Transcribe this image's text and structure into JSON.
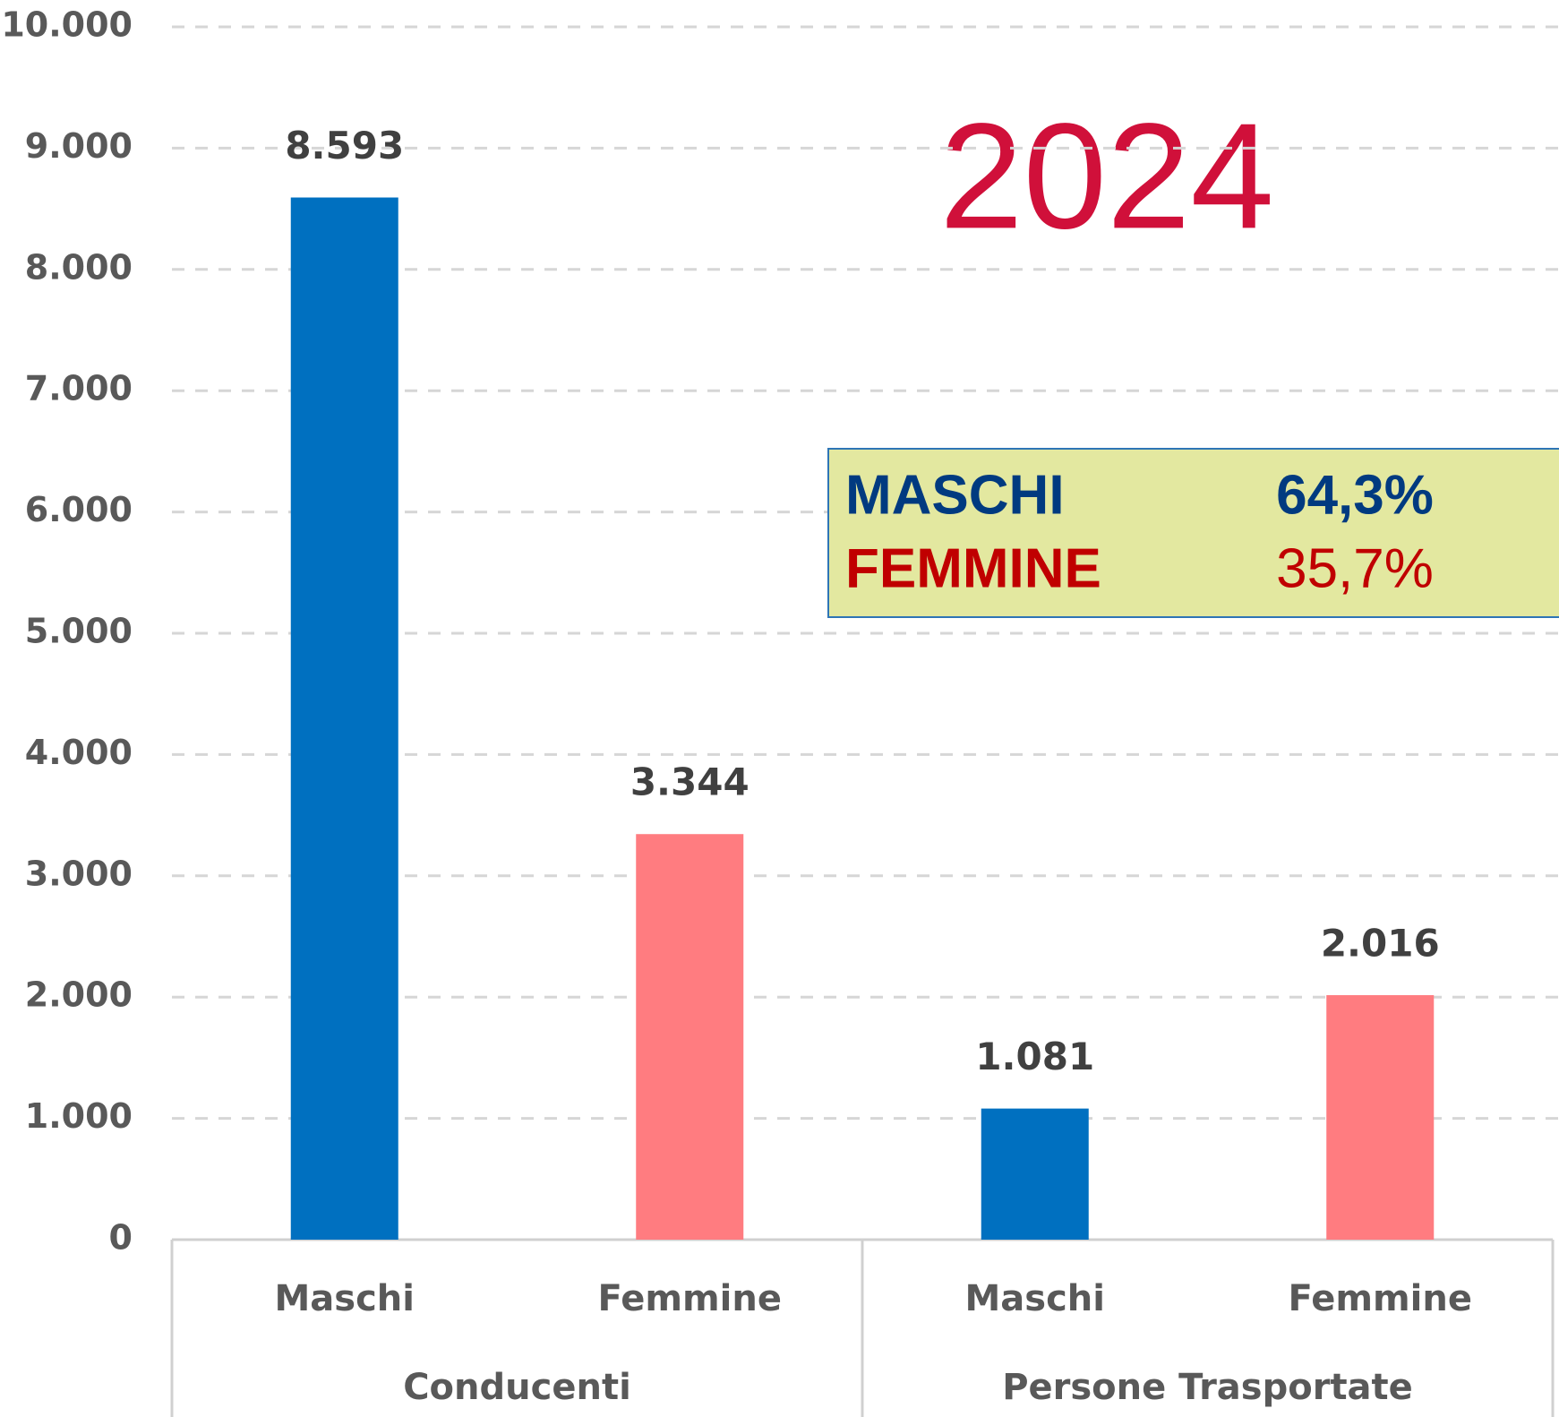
{
  "chart_data": {
    "type": "bar",
    "groups": [
      {
        "name": "Conducenti",
        "categories": [
          "Maschi",
          "Femmine"
        ],
        "values": [
          8593,
          3344
        ],
        "value_labels": [
          "8.593",
          "3.344"
        ]
      },
      {
        "name": "Persone Trasportate",
        "categories": [
          "Maschi",
          "Femmine"
        ],
        "values": [
          1081,
          2016
        ],
        "value_labels": [
          "1.081",
          "2.016"
        ]
      }
    ],
    "colors": [
      "#0070c0",
      "#ff7c80"
    ],
    "ylim": [
      0,
      10000
    ],
    "yticks": [
      0,
      {
        "value": 1000,
        "label": "1.000"
      },
      {
        "value": 2000,
        "label": "2.000"
      },
      {
        "value": 3000,
        "label": "3.000"
      },
      {
        "value": 4000,
        "label": "4.000"
      },
      {
        "value": 5000,
        "label": "5.000"
      },
      {
        "value": 6000,
        "label": "6.000"
      },
      {
        "value": 7000,
        "label": "7.000"
      },
      {
        "value": 8000,
        "label": "8.000"
      },
      {
        "value": 9000,
        "label": "9.000"
      },
      {
        "value": 10000,
        "label": "10.000"
      }
    ],
    "grid": true,
    "annotation": "2024",
    "summary": [
      {
        "label": "MASCHI",
        "value": 64.3,
        "value_label": "64,3%",
        "color": "#003a80"
      },
      {
        "label": "FEMMINE",
        "value": 35.7,
        "value_label": "35,7%",
        "color": "#c00000"
      }
    ]
  }
}
